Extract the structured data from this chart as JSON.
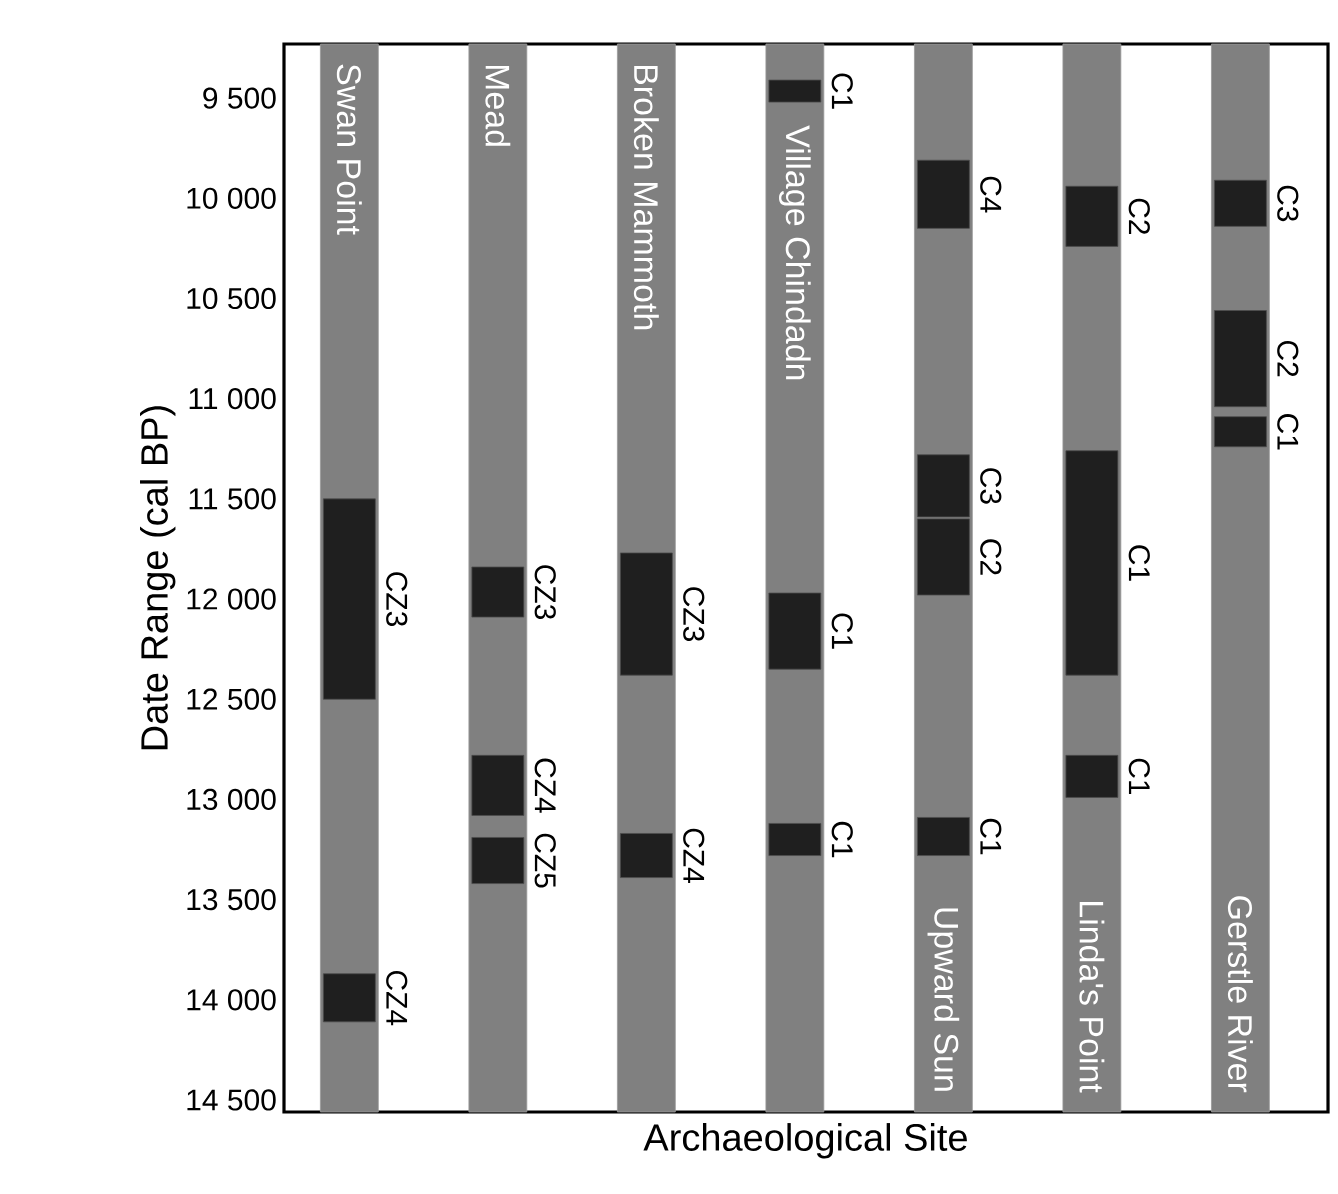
{
  "chart_data": {
    "type": "bar",
    "ylabel": "Date Range (cal BP)",
    "xlabel": "Archaeological Site",
    "categories": [
      "Swan Point",
      "Mead",
      "Broken Mammoth",
      "Village Chindadn",
      "Upward Sun",
      "Linda's Point",
      "Gerstle River"
    ],
    "ylim": [
      14560,
      9230
    ],
    "yticks": [
      {
        "value": 9500,
        "label": "9 500"
      },
      {
        "value": 10000,
        "label": "10 000"
      },
      {
        "value": 10500,
        "label": "10 500"
      },
      {
        "value": 11000,
        "label": "11 000"
      },
      {
        "value": 11500,
        "label": "11 500"
      },
      {
        "value": 12000,
        "label": "12 000"
      },
      {
        "value": 12500,
        "label": "12 500"
      },
      {
        "value": 13000,
        "label": "13 000"
      },
      {
        "value": 13500,
        "label": "13 500"
      },
      {
        "value": 14000,
        "label": "14 000"
      },
      {
        "value": 14500,
        "label": "14 500"
      }
    ],
    "series": [
      {
        "color": "#808080",
        "base": [
          9230,
          9230,
          9230,
          9230,
          9230,
          9230,
          9230
        ],
        "values": [
          5330,
          5330,
          5330,
          5330,
          5330,
          5330,
          5330
        ]
      },
      {
        "color": "#1f1f1f",
        "base": [
          11500,
          11840,
          11770,
          9410,
          9810,
          9940,
          9910
        ],
        "values": [
          1000,
          250,
          610,
          110,
          340,
          300,
          230
        ],
        "value_labels": [
          "CZ3",
          "CZ3",
          "CZ3",
          "C1",
          "C4",
          "C2",
          "C3"
        ]
      },
      {
        "color": "#1f1f1f",
        "base": [
          13870,
          12780,
          13170,
          11970,
          11280,
          11260,
          10560
        ],
        "values": [
          240,
          300,
          220,
          380,
          310,
          1120,
          480
        ],
        "value_labels": [
          "CZ4",
          "CZ4",
          "CZ4",
          "C1",
          "C3",
          "C1",
          "C2"
        ]
      },
      {
        "color": "#1f1f1f",
        "base": [
          null,
          13190,
          null,
          13120,
          11600,
          12780,
          11090
        ],
        "values": [
          null,
          230,
          null,
          160,
          380,
          210,
          150
        ],
        "value_labels": [
          null,
          "CZ5",
          null,
          "C1",
          "C2",
          "C1",
          "C1"
        ]
      },
      {
        "color": "#1f1f1f",
        "base": [
          null,
          null,
          null,
          null,
          13090,
          null,
          null
        ],
        "values": [
          null,
          null,
          null,
          null,
          190,
          null,
          null
        ],
        "value_labels": [
          null,
          null,
          null,
          null,
          "C1",
          null,
          null
        ]
      }
    ]
  }
}
